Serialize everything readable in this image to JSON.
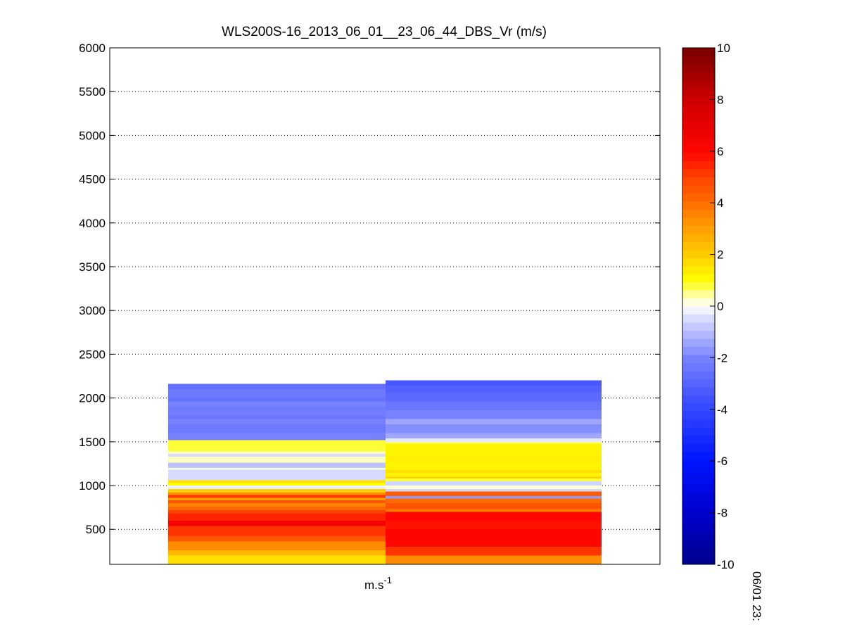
{
  "chart_data": {
    "type": "heatmap",
    "title": "WLS200S-16_2013_06_01__23_06_44_DBS_Vr (m/s)",
    "xlabel": {
      "base": "m.s",
      "exponent": "-1"
    },
    "ylim": [
      100,
      6000
    ],
    "yticks": [
      500,
      1000,
      1500,
      2000,
      2500,
      3000,
      3500,
      4000,
      4500,
      5000,
      5500,
      6000
    ],
    "grid": true,
    "side_label": "06/01 23:",
    "colorbar": {
      "range": [
        -10,
        10
      ],
      "ticks": [
        -10,
        -8,
        -6,
        -4,
        -2,
        0,
        2,
        4,
        6,
        8,
        10
      ],
      "levels": 64
    },
    "columns": [
      {
        "segments": [
          {
            "y0": 100,
            "y1": 200,
            "v": 1.6
          },
          {
            "y0": 200,
            "y1": 260,
            "v": 2.5
          },
          {
            "y0": 260,
            "y1": 360,
            "v": 3.4
          },
          {
            "y0": 360,
            "y1": 420,
            "v": 4.5
          },
          {
            "y0": 420,
            "y1": 540,
            "v": 5.2
          },
          {
            "y0": 540,
            "y1": 600,
            "v": 6.5
          },
          {
            "y0": 600,
            "y1": 680,
            "v": 5.5
          },
          {
            "y0": 680,
            "y1": 720,
            "v": 5.0
          },
          {
            "y0": 720,
            "y1": 760,
            "v": 4.2
          },
          {
            "y0": 760,
            "y1": 800,
            "v": 3.6
          },
          {
            "y0": 800,
            "y1": 830,
            "v": 4.6
          },
          {
            "y0": 830,
            "y1": 860,
            "v": 3.0
          },
          {
            "y0": 860,
            "y1": 890,
            "v": 5.2
          },
          {
            "y0": 890,
            "y1": 920,
            "v": 3.4
          },
          {
            "y0": 920,
            "y1": 960,
            "v": 2.0
          },
          {
            "y0": 960,
            "y1": 1000,
            "v": -0.2
          },
          {
            "y0": 1000,
            "y1": 1030,
            "v": 1.0
          },
          {
            "y0": 1030,
            "y1": 1060,
            "v": 1.6
          },
          {
            "y0": 1060,
            "y1": 1180,
            "v": -0.5
          },
          {
            "y0": 1180,
            "y1": 1200,
            "v": 0.2
          },
          {
            "y0": 1200,
            "y1": 1260,
            "v": -0.9
          },
          {
            "y0": 1260,
            "y1": 1330,
            "v": 0.3
          },
          {
            "y0": 1330,
            "y1": 1360,
            "v": -0.5
          },
          {
            "y0": 1360,
            "y1": 1390,
            "v": 0.3
          },
          {
            "y0": 1390,
            "y1": 1520,
            "v": 0.8
          },
          {
            "y0": 1520,
            "y1": 1600,
            "v": -2.0
          },
          {
            "y0": 1600,
            "y1": 1700,
            "v": -2.3
          },
          {
            "y0": 1700,
            "y1": 1760,
            "v": -2.0
          },
          {
            "y0": 1760,
            "y1": 1800,
            "v": -2.4
          },
          {
            "y0": 1800,
            "y1": 1900,
            "v": -2.2
          },
          {
            "y0": 1900,
            "y1": 1960,
            "v": -2.0
          },
          {
            "y0": 1960,
            "y1": 2000,
            "v": -2.6
          },
          {
            "y0": 2000,
            "y1": 2100,
            "v": -2.3
          },
          {
            "y0": 2100,
            "y1": 2160,
            "v": -2.6
          }
        ]
      },
      {
        "segments": [
          {
            "y0": 100,
            "y1": 200,
            "v": 3.4
          },
          {
            "y0": 200,
            "y1": 300,
            "v": 5.2
          },
          {
            "y0": 300,
            "y1": 500,
            "v": 6.0
          },
          {
            "y0": 500,
            "y1": 600,
            "v": 5.8
          },
          {
            "y0": 600,
            "y1": 700,
            "v": 6.0
          },
          {
            "y0": 700,
            "y1": 730,
            "v": 3.8
          },
          {
            "y0": 730,
            "y1": 800,
            "v": 4.6
          },
          {
            "y0": 800,
            "y1": 850,
            "v": 4.1
          },
          {
            "y0": 850,
            "y1": 880,
            "v": -1.6
          },
          {
            "y0": 880,
            "y1": 930,
            "v": 4.4
          },
          {
            "y0": 930,
            "y1": 960,
            "v": -0.6
          },
          {
            "y0": 960,
            "y1": 1000,
            "v": 0.2
          },
          {
            "y0": 1000,
            "y1": 1050,
            "v": -0.6
          },
          {
            "y0": 1050,
            "y1": 1080,
            "v": 0.8
          },
          {
            "y0": 1080,
            "y1": 1100,
            "v": 2.0
          },
          {
            "y0": 1100,
            "y1": 1140,
            "v": 1.2
          },
          {
            "y0": 1140,
            "y1": 1180,
            "v": 1.6
          },
          {
            "y0": 1180,
            "y1": 1260,
            "v": 1.2
          },
          {
            "y0": 1260,
            "y1": 1340,
            "v": 1.3
          },
          {
            "y0": 1340,
            "y1": 1480,
            "v": 1.2
          },
          {
            "y0": 1480,
            "y1": 1500,
            "v": 0.6
          },
          {
            "y0": 1500,
            "y1": 1540,
            "v": -0.3
          },
          {
            "y0": 1540,
            "y1": 1600,
            "v": -1.4
          },
          {
            "y0": 1600,
            "y1": 1700,
            "v": -1.8
          },
          {
            "y0": 1700,
            "y1": 1760,
            "v": -1.4
          },
          {
            "y0": 1760,
            "y1": 1860,
            "v": -2.0
          },
          {
            "y0": 1860,
            "y1": 1960,
            "v": -2.4
          },
          {
            "y0": 1960,
            "y1": 2060,
            "v": -2.8
          },
          {
            "y0": 2060,
            "y1": 2140,
            "v": -3.1
          },
          {
            "y0": 2140,
            "y1": 2200,
            "v": -3.4
          }
        ]
      }
    ]
  }
}
